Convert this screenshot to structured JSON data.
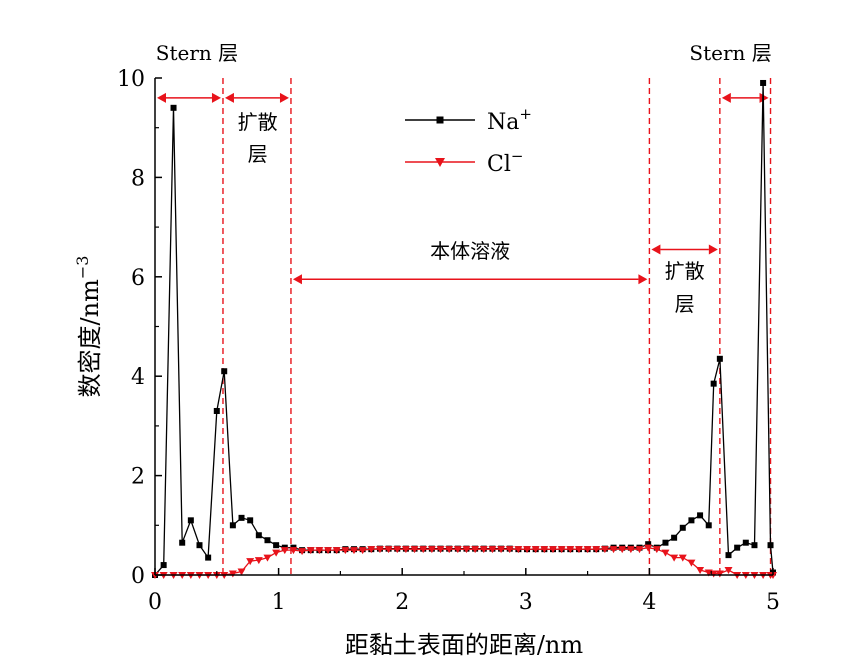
{
  "chart_data": {
    "type": "line",
    "xlabel": "距黏土表面的距离/nm",
    "ylabel": "数密度/nm",
    "ylabel_sup": "−3",
    "xlim": [
      0,
      5
    ],
    "ylim": [
      0,
      10
    ],
    "xticks": [
      0,
      1,
      2,
      3,
      4,
      5
    ],
    "yticks": [
      0,
      2,
      4,
      6,
      8,
      10
    ],
    "grid": false,
    "legend": {
      "placement": "top-center",
      "entries": [
        {
          "name": "Na",
          "sup": "+",
          "color": "#000000",
          "marker": "square"
        },
        {
          "name": "Cl",
          "sup": "−",
          "color": "#e8131b",
          "marker": "triangle-down"
        }
      ]
    },
    "series": [
      {
        "name": "Na+",
        "color": "#000000",
        "marker": "square",
        "x": [
          0.0,
          0.07,
          0.15,
          0.22,
          0.29,
          0.36,
          0.43,
          0.5,
          0.56,
          0.63,
          0.7,
          0.77,
          0.84,
          0.91,
          0.98,
          1.05,
          1.12,
          1.19,
          1.26,
          1.33,
          1.4,
          1.47,
          1.54,
          1.61,
          1.68,
          1.75,
          1.82,
          1.89,
          1.96,
          2.03,
          2.1,
          2.17,
          2.24,
          2.31,
          2.38,
          2.45,
          2.52,
          2.59,
          2.66,
          2.73,
          2.8,
          2.87,
          2.94,
          3.01,
          3.08,
          3.15,
          3.22,
          3.29,
          3.36,
          3.43,
          3.5,
          3.57,
          3.64,
          3.71,
          3.78,
          3.85,
          3.92,
          3.99,
          4.06,
          4.13,
          4.2,
          4.27,
          4.34,
          4.41,
          4.48,
          4.52,
          4.57,
          4.64,
          4.71,
          4.78,
          4.85,
          4.92,
          4.98,
          5.0
        ],
        "y": [
          0.0,
          0.2,
          9.4,
          0.65,
          1.1,
          0.6,
          0.35,
          3.3,
          4.1,
          1.0,
          1.15,
          1.1,
          0.8,
          0.7,
          0.6,
          0.55,
          0.55,
          0.5,
          0.5,
          0.5,
          0.5,
          0.5,
          0.52,
          0.52,
          0.52,
          0.52,
          0.53,
          0.53,
          0.53,
          0.53,
          0.53,
          0.53,
          0.53,
          0.53,
          0.53,
          0.53,
          0.53,
          0.53,
          0.53,
          0.53,
          0.53,
          0.53,
          0.52,
          0.52,
          0.52,
          0.52,
          0.52,
          0.52,
          0.52,
          0.52,
          0.52,
          0.52,
          0.53,
          0.55,
          0.55,
          0.55,
          0.55,
          0.62,
          0.55,
          0.65,
          0.75,
          0.95,
          1.1,
          1.2,
          1.0,
          3.85,
          4.35,
          0.4,
          0.55,
          0.65,
          0.6,
          9.9,
          0.6,
          0.05
        ]
      },
      {
        "name": "Cl-",
        "color": "#e8131b",
        "marker": "triangle-down",
        "x": [
          0.0,
          0.07,
          0.15,
          0.22,
          0.29,
          0.36,
          0.43,
          0.5,
          0.56,
          0.63,
          0.7,
          0.77,
          0.84,
          0.91,
          0.98,
          1.05,
          1.12,
          1.19,
          1.26,
          1.33,
          1.4,
          1.47,
          1.54,
          1.61,
          1.68,
          1.75,
          1.82,
          1.89,
          1.96,
          2.03,
          2.1,
          2.17,
          2.24,
          2.31,
          2.38,
          2.45,
          2.52,
          2.59,
          2.66,
          2.73,
          2.8,
          2.87,
          2.94,
          3.01,
          3.08,
          3.15,
          3.22,
          3.29,
          3.36,
          3.43,
          3.5,
          3.57,
          3.64,
          3.71,
          3.78,
          3.85,
          3.92,
          3.99,
          4.06,
          4.13,
          4.2,
          4.27,
          4.34,
          4.41,
          4.48,
          4.52,
          4.57,
          4.64,
          4.71,
          4.78,
          4.85,
          4.92,
          4.98,
          5.0
        ],
        "y": [
          0.0,
          0.0,
          0.0,
          0.0,
          0.0,
          0.0,
          0.0,
          0.0,
          0.0,
          0.03,
          0.07,
          0.28,
          0.3,
          0.35,
          0.45,
          0.5,
          0.5,
          0.48,
          0.5,
          0.5,
          0.5,
          0.5,
          0.5,
          0.5,
          0.5,
          0.52,
          0.52,
          0.52,
          0.52,
          0.52,
          0.52,
          0.52,
          0.52,
          0.52,
          0.52,
          0.52,
          0.52,
          0.52,
          0.52,
          0.52,
          0.52,
          0.52,
          0.52,
          0.52,
          0.52,
          0.52,
          0.52,
          0.52,
          0.52,
          0.52,
          0.52,
          0.52,
          0.52,
          0.52,
          0.52,
          0.52,
          0.52,
          0.55,
          0.52,
          0.45,
          0.35,
          0.35,
          0.25,
          0.1,
          0.05,
          0.03,
          0.03,
          0.1,
          0.0,
          0.0,
          0.0,
          0.0,
          0.0,
          0.0
        ]
      }
    ],
    "vlines": [
      0.55,
      1.1,
      4.0,
      4.57,
      4.98
    ],
    "annotations": [
      {
        "id": "stern-left",
        "text": "Stern 层",
        "arrow": [
          0.0,
          0.55
        ],
        "arrow_y": 9.6
      },
      {
        "id": "diffuse-left-1",
        "text": "扩散",
        "arrow": [
          0.55,
          1.1
        ],
        "arrow_y": 9.6
      },
      {
        "id": "diffuse-left-2",
        "text": "层"
      },
      {
        "id": "bulk",
        "text": "本体溶液",
        "arrow": [
          1.1,
          4.0
        ],
        "arrow_y": 5.95
      },
      {
        "id": "diffuse-right-1",
        "text": "扩散",
        "arrow": [
          4.0,
          4.57
        ],
        "arrow_y": 6.55
      },
      {
        "id": "diffuse-right-2",
        "text": "层"
      },
      {
        "id": "stern-right",
        "text": "Stern 层",
        "arrow": [
          4.57,
          4.98
        ],
        "arrow_y": 9.6
      }
    ]
  }
}
